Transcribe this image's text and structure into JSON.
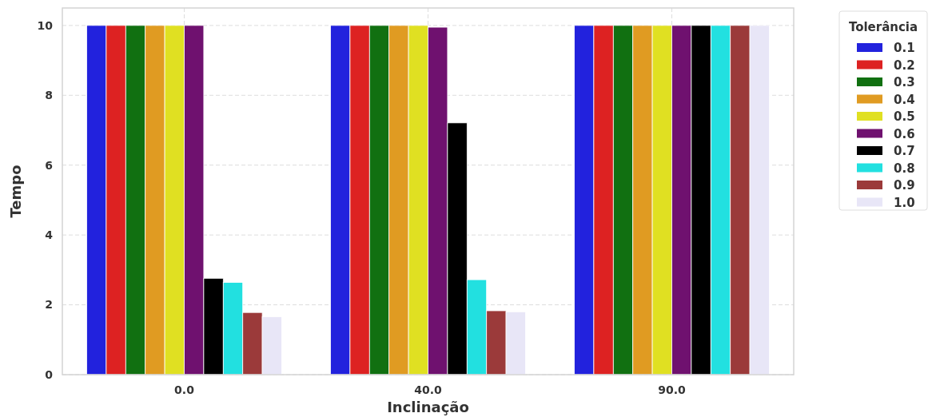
{
  "chart_data": {
    "type": "bar",
    "xlabel": "Inclinação",
    "ylabel": "Tempo",
    "legend_title": "Tolerância",
    "categories": [
      "0.0",
      "40.0",
      "90.0"
    ],
    "series": [
      {
        "name": "0.1",
        "color": "#2222dd",
        "values": [
          10,
          10,
          10
        ]
      },
      {
        "name": "0.2",
        "color": "#dd2222",
        "values": [
          10,
          10,
          10
        ]
      },
      {
        "name": "0.3",
        "color": "#117011",
        "values": [
          10,
          10,
          10
        ]
      },
      {
        "name": "0.4",
        "color": "#e09b22",
        "values": [
          10,
          10,
          10
        ]
      },
      {
        "name": "0.5",
        "color": "#e0e022",
        "values": [
          10,
          10,
          10
        ]
      },
      {
        "name": "0.6",
        "color": "#6f116f",
        "values": [
          10,
          9.95,
          10
        ]
      },
      {
        "name": "0.7",
        "color": "#000000",
        "values": [
          2.76,
          7.21,
          10
        ]
      },
      {
        "name": "0.8",
        "color": "#22e0e0",
        "values": [
          2.64,
          2.72,
          10
        ]
      },
      {
        "name": "0.9",
        "color": "#9b3a3a",
        "values": [
          1.78,
          1.83,
          10
        ]
      },
      {
        "name": "1.0",
        "color": "#e8e6f7",
        "values": [
          1.66,
          1.8,
          10
        ]
      }
    ],
    "ylim": [
      0,
      10.5
    ],
    "yticks": [
      0,
      2,
      4,
      6,
      8,
      10
    ],
    "grid": true,
    "legend": "top right"
  }
}
